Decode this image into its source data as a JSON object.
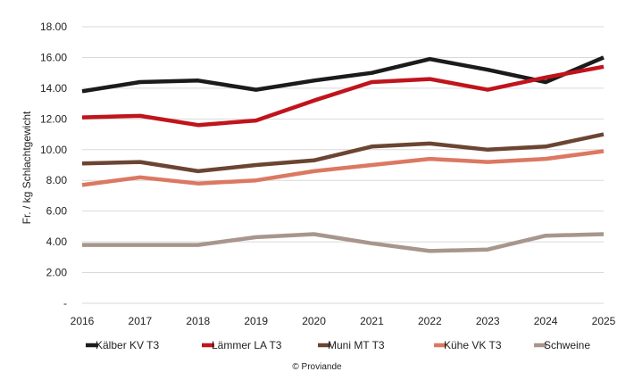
{
  "chart_data": {
    "type": "line",
    "categories": [
      "2016",
      "2017",
      "2018",
      "2019",
      "2020",
      "2021",
      "2022",
      "2023",
      "2024",
      "2025"
    ],
    "ylabel": "Fr. / kg Schlachtgewicht",
    "xlabel": "",
    "ylim": [
      0,
      18
    ],
    "yticks": [
      0,
      2,
      4,
      6,
      8,
      10,
      12,
      14,
      16,
      18
    ],
    "ytick_labels": [
      "-",
      "2.00",
      "4.00",
      "6.00",
      "8.00",
      "10.00",
      "12.00",
      "14.00",
      "16.00",
      "18.00"
    ],
    "grid": true,
    "legend_position": "bottom",
    "series": [
      {
        "name": "Kälber KV T3",
        "color": "#1c1a1b",
        "values": [
          13.8,
          14.4,
          14.5,
          13.9,
          14.5,
          15.0,
          15.9,
          15.2,
          14.4,
          16.0
        ]
      },
      {
        "name": "Lämmer LA T3",
        "color": "#c0141c",
        "values": [
          12.1,
          12.2,
          11.6,
          11.9,
          13.2,
          14.4,
          14.6,
          13.9,
          14.7,
          15.4
        ]
      },
      {
        "name": "Muni MT T3",
        "color": "#6b4532",
        "values": [
          9.1,
          9.2,
          8.6,
          9.0,
          9.3,
          10.2,
          10.4,
          10.0,
          10.2,
          11.0
        ]
      },
      {
        "name": "Kühe VK T3",
        "color": "#dc7862",
        "values": [
          7.7,
          8.2,
          7.8,
          8.0,
          8.6,
          9.0,
          9.4,
          9.2,
          9.4,
          9.9
        ]
      },
      {
        "name": "Schweine",
        "color": "#a8968d",
        "values": [
          3.8,
          3.8,
          3.8,
          4.3,
          4.5,
          3.9,
          3.4,
          3.5,
          4.4,
          4.5
        ]
      }
    ],
    "source": "© Proviande"
  }
}
